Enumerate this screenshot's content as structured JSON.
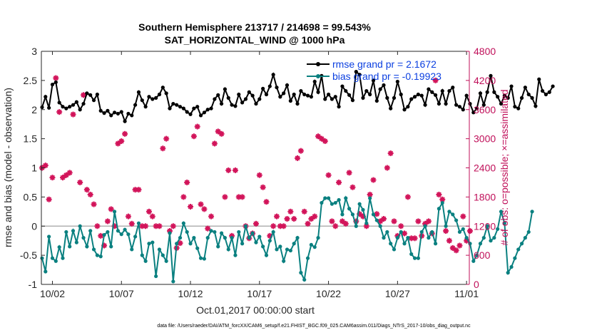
{
  "chart_data": {
    "type": "line",
    "title_line1": "Southern Hemisphere 213717 / 214698 = 99.543%",
    "title_line2": "SAT_HORIZONTAL_WIND @ 1000 hPa",
    "ylabel_left": "rmse and bias (model - observation)",
    "ylabel_right": "# of obs: o=possible; ×=assimilated",
    "xlabel": "Oct.01,2017 00:00:00 start",
    "x_range_days": [
      0.2,
      31.2
    ],
    "ylim_left": [
      -1,
      3
    ],
    "ylim_right": [
      0,
      4800
    ],
    "x_ticks": [
      {
        "day": 1,
        "label": "10/02"
      },
      {
        "day": 6,
        "label": "10/07"
      },
      {
        "day": 11,
        "label": "10/12"
      },
      {
        "day": 16,
        "label": "10/17"
      },
      {
        "day": 21,
        "label": "10/22"
      },
      {
        "day": 26,
        "label": "10/27"
      },
      {
        "day": 31,
        "label": "11/01"
      }
    ],
    "y_ticks_left": [
      "-1",
      "-0.5",
      "0",
      "0.5",
      "1",
      "1.5",
      "2",
      "2.5",
      "3"
    ],
    "y_ticks_right": [
      "0",
      "600",
      "1200",
      "1800",
      "2400",
      "3000",
      "3600",
      "4200",
      "4800"
    ],
    "legend_position": "top-right",
    "colors": {
      "rmse": "#000000",
      "bias": "#0a8080",
      "obs": "#d2145a",
      "zero_line": "#b0b0b0"
    },
    "step_days": 0.25,
    "series": [
      {
        "name": "rmse grand pr = 2.1672",
        "x_start_day": 0.25,
        "values": [
          2.04,
          2.22,
          2.03,
          2.43,
          2.47,
          2.12,
          2.05,
          2.02,
          2.05,
          2.08,
          2.13,
          2.0,
          2.1,
          2.28,
          2.25,
          2.16,
          2.26,
          1.98,
          1.94,
          1.98,
          1.9,
          1.95,
          1.93,
          1.96,
          1.8,
          1.93,
          1.9,
          2.08,
          2.3,
          2.16,
          2.05,
          2.22,
          2.18,
          2.2,
          2.26,
          2.38,
          2.28,
          2.02,
          2.1,
          2.08,
          2.05,
          2.02,
          1.96,
          1.92,
          2.02,
          2.05,
          1.9,
          1.95,
          2.0,
          2.02,
          2.18,
          2.25,
          2.1,
          2.35,
          2.2,
          2.08,
          2.06,
          2.26,
          2.12,
          2.18,
          2.3,
          2.24,
          2.1,
          2.18,
          2.36,
          2.26,
          2.4,
          2.6,
          2.38,
          2.22,
          2.28,
          2.42,
          2.15,
          2.26,
          2.1,
          2.32,
          2.26,
          2.24,
          2.22,
          2.48,
          2.3,
          2.58,
          2.18,
          2.26,
          2.18,
          2.22,
          2.05,
          2.4,
          2.32,
          2.25,
          2.16,
          2.65,
          2.6,
          2.2,
          2.32,
          2.26,
          2.5,
          2.15,
          2.35,
          2.42,
          2.2,
          2.02,
          2.2,
          2.48,
          2.26,
          2.0,
          2.05,
          2.18,
          2.22,
          2.26,
          2.24,
          2.08,
          2.35,
          2.3,
          2.25,
          2.1,
          2.32,
          2.1,
          2.32,
          2.38,
          2.08,
          2.05,
          2.0,
          2.24,
          2.1,
          1.95,
          2.02,
          2.28,
          2.08,
          2.3,
          2.58,
          2.3,
          2.22,
          2.1,
          2.24,
          2.2,
          2.4,
          2.05,
          2.02,
          2.2,
          2.38,
          2.26,
          2.2,
          2.06,
          2.52,
          2.32,
          2.26,
          2.3,
          2.4
        ]
      },
      {
        "name": "bias grand pr = -0.19923",
        "x_start_day": 0.25,
        "values": [
          -0.55,
          -0.78,
          -0.18,
          -0.55,
          -0.6,
          -0.36,
          -0.55,
          -0.1,
          -0.35,
          -0.08,
          -0.28,
          0.0,
          -0.2,
          -0.35,
          -0.08,
          -0.4,
          -0.5,
          -0.52,
          -0.15,
          -0.1,
          -0.35,
          0.25,
          -0.08,
          -0.14,
          -0.06,
          -0.14,
          -0.4,
          -0.18,
          0.05,
          -0.5,
          -0.6,
          -0.3,
          -0.28,
          -0.86,
          -0.4,
          -0.5,
          -0.6,
          -0.12,
          -0.95,
          -0.3,
          -0.2,
          0.05,
          -0.1,
          -0.3,
          -0.2,
          -0.38,
          -0.55,
          -0.56,
          -0.2,
          -0.08,
          -0.1,
          -0.35,
          -0.12,
          -0.2,
          -0.4,
          -0.2,
          -0.5,
          -0.1,
          -0.3,
          0.0,
          -0.2,
          -0.12,
          -0.28,
          -0.18,
          -0.35,
          -0.5,
          -0.25,
          -0.1,
          -0.4,
          -0.35,
          -0.6,
          -0.4,
          -0.42,
          -0.3,
          -0.2,
          -0.8,
          -0.92,
          -0.55,
          -0.32,
          -0.36,
          -0.2,
          0.4,
          0.48,
          0.48,
          0.38,
          0.4,
          0.45,
          0.2,
          0.48,
          0.3,
          0.2,
          0.0,
          0.38,
          0.28,
          0.05,
          0.48,
          0.2,
          0.1,
          0.0,
          -0.2,
          -0.1,
          -0.3,
          -0.4,
          -0.2,
          -0.1,
          -0.3,
          -0.2,
          -0.48,
          -0.55,
          -0.55,
          -0.1,
          0.0,
          -0.2,
          -0.1,
          -0.3,
          0.3,
          0.4,
          0.0,
          0.25,
          0.2,
          0.1,
          -0.1,
          -0.05,
          -0.2,
          -0.3,
          -0.6,
          -0.5,
          -0.3,
          -0.2,
          0.0,
          -0.25,
          -0.2,
          -0.05,
          0.25,
          0.05,
          -0.8,
          -0.7,
          -0.55,
          -0.4,
          -0.3,
          -0.2,
          -0.1,
          0.25
        ]
      }
    ],
    "obs_assimilated": {
      "name": "assimilated (×)",
      "points": [
        [
          0.25,
          2400
        ],
        [
          0.5,
          2450
        ],
        [
          0.75,
          1750
        ],
        [
          1.0,
          2200
        ],
        [
          1.25,
          4250
        ],
        [
          1.5,
          3550
        ],
        [
          1.75,
          2200
        ],
        [
          2.0,
          2250
        ],
        [
          2.25,
          2300
        ],
        [
          2.5,
          3500
        ],
        [
          3.0,
          2100
        ],
        [
          3.25,
          3900
        ],
        [
          3.5,
          1950
        ],
        [
          3.75,
          1850
        ],
        [
          4.0,
          1650
        ],
        [
          4.25,
          1200
        ],
        [
          4.5,
          1000
        ],
        [
          4.75,
          800
        ],
        [
          5.0,
          1300
        ],
        [
          5.25,
          1550
        ],
        [
          5.5,
          1200
        ],
        [
          5.75,
          2900
        ],
        [
          6.0,
          2950
        ],
        [
          6.25,
          3100
        ],
        [
          6.5,
          1400
        ],
        [
          6.75,
          1250
        ],
        [
          7.0,
          1950
        ],
        [
          7.25,
          1950
        ],
        [
          7.5,
          1200
        ],
        [
          7.75,
          1200
        ],
        [
          8.0,
          1500
        ],
        [
          8.25,
          1400
        ],
        [
          8.5,
          1200
        ],
        [
          8.75,
          1200
        ],
        [
          9.0,
          2800
        ],
        [
          9.25,
          3000
        ],
        [
          9.5,
          1100
        ],
        [
          9.75,
          1200
        ],
        [
          10.0,
          750
        ],
        [
          10.25,
          850
        ],
        [
          10.5,
          1800
        ],
        [
          10.75,
          2100
        ],
        [
          11.0,
          1600
        ],
        [
          11.25,
          3050
        ],
        [
          11.5,
          3250
        ],
        [
          11.75,
          1650
        ],
        [
          12.0,
          1550
        ],
        [
          12.25,
          1150
        ],
        [
          12.5,
          1400
        ],
        [
          12.75,
          2900
        ],
        [
          13.0,
          3150
        ],
        [
          13.25,
          3100
        ],
        [
          13.5,
          1800
        ],
        [
          13.75,
          2350
        ],
        [
          14.0,
          1000
        ],
        [
          14.25,
          2350
        ],
        [
          14.5,
          1800
        ],
        [
          14.75,
          1800
        ],
        [
          15.0,
          1200
        ],
        [
          15.25,
          950
        ],
        [
          15.5,
          1050
        ],
        [
          15.75,
          1250
        ],
        [
          16.0,
          2250
        ],
        [
          16.25,
          2000
        ],
        [
          16.5,
          1700
        ],
        [
          16.75,
          1000
        ],
        [
          17.0,
          1200
        ],
        [
          17.25,
          1400
        ],
        [
          17.5,
          1200
        ],
        [
          17.75,
          1200
        ],
        [
          18.0,
          1350
        ],
        [
          18.25,
          1500
        ],
        [
          18.5,
          1350
        ],
        [
          18.75,
          2600
        ],
        [
          19.0,
          2750
        ],
        [
          19.25,
          1500
        ],
        [
          19.5,
          1250
        ],
        [
          19.75,
          1350
        ],
        [
          20.0,
          1400
        ],
        [
          20.25,
          3050
        ],
        [
          20.5,
          3000
        ],
        [
          20.75,
          2950
        ],
        [
          21.0,
          2250
        ],
        [
          21.25,
          1300
        ],
        [
          21.5,
          1200
        ],
        [
          21.75,
          2100
        ],
        [
          22.0,
          1300
        ],
        [
          22.25,
          1250
        ],
        [
          22.5,
          2300
        ],
        [
          22.75,
          2000
        ],
        [
          23.0,
          1300
        ],
        [
          23.25,
          1450
        ],
        [
          23.5,
          1400
        ],
        [
          23.75,
          1200
        ],
        [
          24.0,
          1850
        ],
        [
          24.25,
          2150
        ],
        [
          24.5,
          1450
        ],
        [
          24.75,
          1300
        ],
        [
          25.0,
          1350
        ],
        [
          25.25,
          2400
        ],
        [
          25.5,
          2700
        ],
        [
          25.75,
          1300
        ],
        [
          26.0,
          1000
        ],
        [
          26.25,
          1200
        ],
        [
          26.5,
          1050
        ],
        [
          26.75,
          1800
        ],
        [
          27.0,
          950
        ],
        [
          27.25,
          950
        ],
        [
          27.5,
          1300
        ],
        [
          27.75,
          1000
        ],
        [
          28.0,
          1250
        ],
        [
          28.25,
          1300
        ],
        [
          28.5,
          1050
        ],
        [
          28.75,
          4200
        ],
        [
          29.0,
          1850
        ],
        [
          29.25,
          1750
        ],
        [
          29.5,
          1100
        ],
        [
          29.75,
          900
        ],
        [
          30.0,
          750
        ],
        [
          30.25,
          700
        ],
        [
          30.5,
          800
        ],
        [
          30.75,
          1400
        ],
        [
          31.0,
          900
        ],
        [
          31.25,
          1100
        ]
      ]
    },
    "footer": "data file: /Users/raeder/DAI/ATM_forcXX/CAM6_setup/f.e21.FHIST_BGC.f09_025.CAM6assim.011/Diags_NTrS_2017-10/obs_diag_output.nc"
  }
}
